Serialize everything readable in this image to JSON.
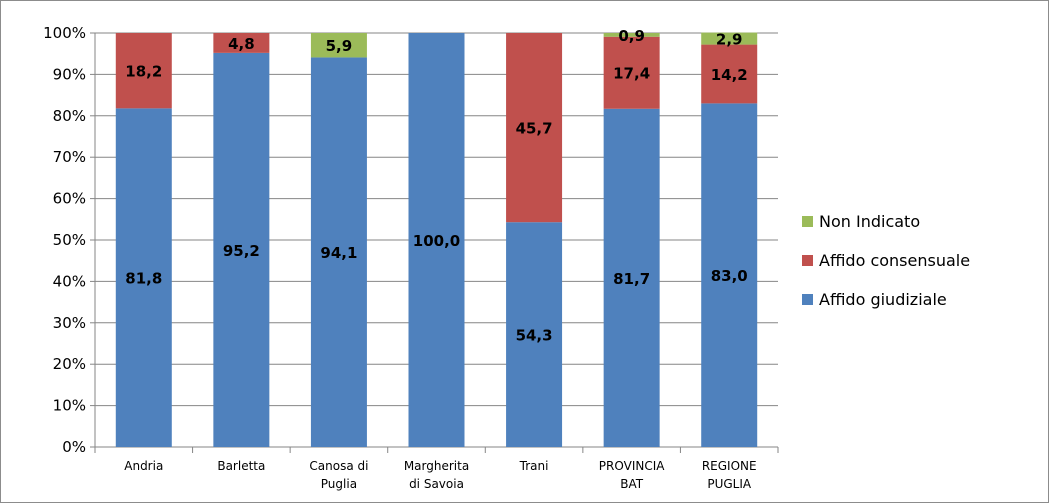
{
  "chart_data": {
    "type": "bar",
    "stacked": true,
    "percent_stacked": true,
    "categories": [
      [
        "Andria"
      ],
      [
        "Barletta"
      ],
      [
        "Canosa di",
        "Puglia"
      ],
      [
        "Margherita",
        "di Savoia"
      ],
      [
        "Trani"
      ],
      [
        "PROVINCIA",
        "BAT"
      ],
      [
        "REGIONE",
        "PUGLIA"
      ]
    ],
    "series": [
      {
        "name": "Affido giudiziale",
        "color": "#4f81bd",
        "values": [
          81.8,
          95.2,
          94.1,
          100.0,
          54.3,
          81.7,
          83.0
        ],
        "labels": [
          "81,8",
          "95,2",
          "94,1",
          "100,0",
          "54,3",
          "81,7",
          "83,0"
        ]
      },
      {
        "name": "Affido consensuale",
        "color": "#c0504d",
        "values": [
          18.2,
          4.8,
          0,
          0,
          45.7,
          17.4,
          14.2
        ],
        "labels": [
          "18,2",
          "4,8",
          "",
          "",
          "45,7",
          "17,4",
          "14,2"
        ]
      },
      {
        "name": "Non Indicato",
        "color": "#9bbb59",
        "values": [
          0,
          0,
          5.9,
          0,
          0,
          0.9,
          2.9
        ],
        "labels": [
          "",
          "",
          "5,9",
          "",
          "",
          "0,9",
          "2,9"
        ]
      }
    ],
    "y_ticks": [
      "0%",
      "10%",
      "20%",
      "30%",
      "40%",
      "50%",
      "60%",
      "70%",
      "80%",
      "90%",
      "100%"
    ],
    "ylim": [
      0,
      100
    ],
    "grid": true,
    "legend_position": "right",
    "legend_order": [
      "Non Indicato",
      "Affido consensuale",
      "Affido giudiziale"
    ],
    "title": "",
    "xlabel": "",
    "ylabel": ""
  }
}
